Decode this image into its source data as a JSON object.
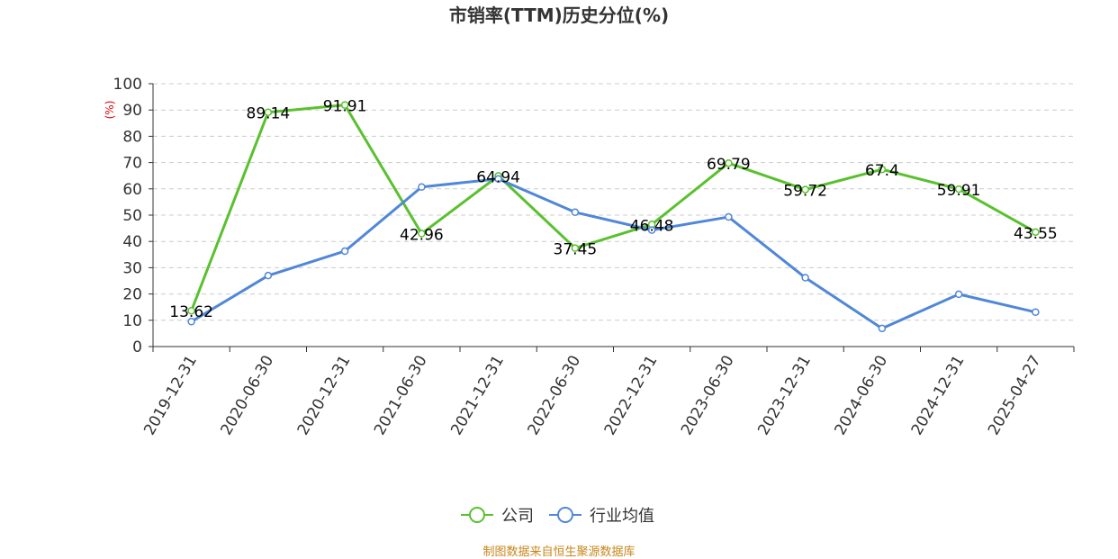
{
  "chart_data": {
    "type": "line",
    "title": "市销率(TTM)历史分位(%)",
    "ylabel": "(%)",
    "xlabel": "",
    "ylim": [
      0,
      100
    ],
    "yticks": [
      0,
      10,
      20,
      30,
      40,
      50,
      60,
      70,
      80,
      90,
      100
    ],
    "categories": [
      "2019-12-31",
      "2020-06-30",
      "2020-12-31",
      "2021-06-30",
      "2021-12-31",
      "2022-06-30",
      "2022-12-31",
      "2023-06-30",
      "2023-12-31",
      "2024-06-30",
      "2024-12-31",
      "2025-04-27"
    ],
    "series": [
      {
        "name": "公司",
        "color": "#5ac12e",
        "values": [
          13.62,
          89.14,
          91.91,
          42.96,
          64.94,
          37.45,
          46.48,
          69.79,
          59.72,
          67.4,
          59.91,
          43.55
        ],
        "labels": [
          "13.62",
          "89.14",
          "91.91",
          "42.96",
          "64.94",
          "37.45",
          "46.48",
          "69.79",
          "59.72",
          "67.4",
          "59.91",
          "43.55"
        ]
      },
      {
        "name": "行业均值",
        "color": "#5087d8",
        "values": [
          9.5,
          27,
          36.3,
          60.7,
          63.8,
          51.1,
          44.3,
          49.3,
          26.2,
          6.9,
          19.9,
          13.1
        ]
      }
    ],
    "legend_position": "bottom-center",
    "grid": "horizontal-dashed"
  },
  "footer": {
    "source": "制图数据来自恒生聚源数据库"
  }
}
